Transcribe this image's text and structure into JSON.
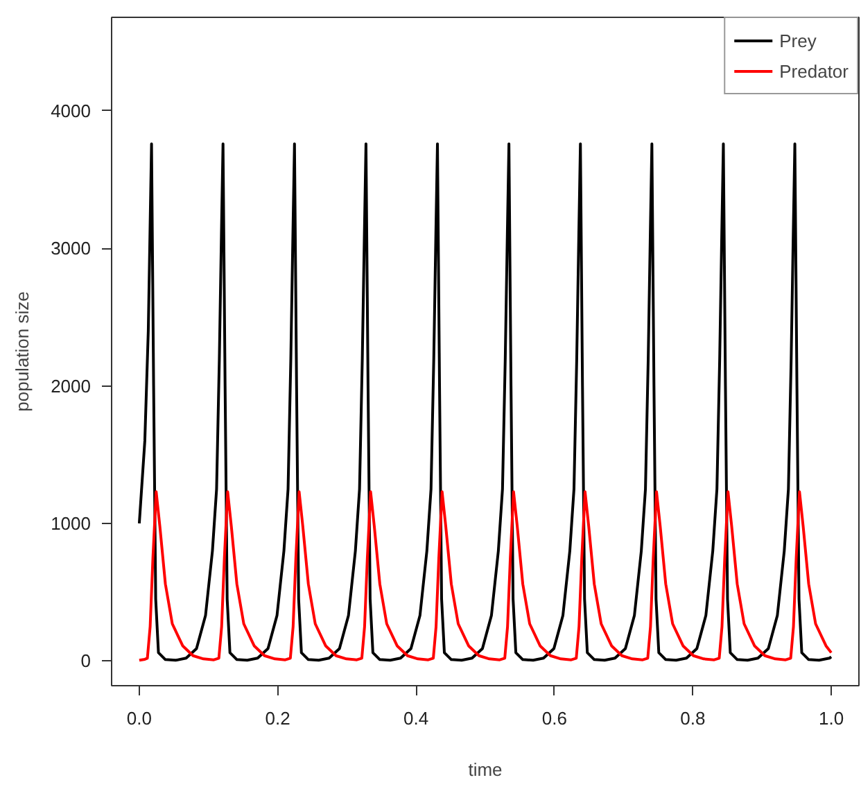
{
  "chart_data": {
    "type": "line",
    "xlabel": "time",
    "ylabel": "population size",
    "xlim": [
      -0.04,
      1.04
    ],
    "ylim": [
      -180,
      4680
    ],
    "xticks": [
      {
        "value": 0,
        "label": "0.0"
      },
      {
        "value": 0.2,
        "label": "0.2"
      },
      {
        "value": 0.4,
        "label": "0.4"
      },
      {
        "value": 0.6,
        "label": "0.6"
      },
      {
        "value": 0.8,
        "label": "0.8"
      },
      {
        "value": 1,
        "label": "1.0"
      }
    ],
    "yticks": [
      0,
      1000,
      2000,
      3000,
      4000
    ],
    "grid": false,
    "legend": "top right",
    "marker": "none",
    "line_style": "solid",
    "series": [
      {
        "name": "Prey",
        "color": "#000000",
        "x": [
          0,
          0.008,
          0.013,
          0.0177,
          0.0207,
          0.0237,
          0.0277,
          0.0377,
          0.0527,
          0.0677,
          0.0827,
          0.0957,
          0.1057,
          0.1117,
          0.1157,
          0.1187,
          0.121,
          0.124,
          0.127,
          0.131,
          0.141,
          0.156,
          0.171,
          0.186,
          0.199,
          0.209,
          0.215,
          0.219,
          0.222,
          0.2243,
          0.2273,
          0.2303,
          0.2343,
          0.2443,
          0.2593,
          0.2743,
          0.2893,
          0.3023,
          0.3123,
          0.3183,
          0.3223,
          0.3253,
          0.3276,
          0.3306,
          0.3336,
          0.3376,
          0.3476,
          0.3626,
          0.3776,
          0.3926,
          0.4056,
          0.4156,
          0.4216,
          0.4256,
          0.4286,
          0.4309,
          0.4339,
          0.4369,
          0.4409,
          0.4509,
          0.4659,
          0.4809,
          0.4959,
          0.5089,
          0.5189,
          0.5249,
          0.5289,
          0.5319,
          0.5342,
          0.5372,
          0.5402,
          0.5442,
          0.5542,
          0.5692,
          0.5842,
          0.5992,
          0.6122,
          0.6222,
          0.6282,
          0.6322,
          0.6352,
          0.6375,
          0.6405,
          0.6435,
          0.6475,
          0.6575,
          0.6725,
          0.6875,
          0.7025,
          0.7155,
          0.7255,
          0.7315,
          0.7355,
          0.7385,
          0.7408,
          0.7438,
          0.7468,
          0.7508,
          0.7608,
          0.7758,
          0.7908,
          0.8058,
          0.8188,
          0.8288,
          0.8348,
          0.8388,
          0.8418,
          0.8441,
          0.8471,
          0.8501,
          0.8541,
          0.8641,
          0.8791,
          0.8941,
          0.9091,
          0.9221,
          0.9321,
          0.9381,
          0.9421,
          0.9451,
          0.9474,
          0.9504,
          0.9534,
          0.9574,
          0.9674,
          0.9824,
          0.9974,
          1.0
        ],
        "values": [
          1000,
          1600,
          2400,
          3760,
          2000,
          450,
          60,
          10,
          5,
          20,
          90,
          330,
          800,
          1250,
          2200,
          3100,
          3760,
          2000,
          450,
          60,
          10,
          5,
          20,
          90,
          330,
          800,
          1250,
          2200,
          3100,
          3760,
          2000,
          450,
          60,
          10,
          5,
          20,
          90,
          330,
          800,
          1250,
          2200,
          3100,
          3760,
          2000,
          450,
          60,
          10,
          5,
          20,
          90,
          330,
          800,
          1250,
          2200,
          3100,
          3760,
          2000,
          450,
          60,
          10,
          5,
          20,
          90,
          330,
          800,
          1250,
          2200,
          3100,
          3760,
          2000,
          450,
          60,
          10,
          5,
          20,
          90,
          330,
          800,
          1250,
          2200,
          3100,
          3760,
          2000,
          450,
          60,
          10,
          5,
          20,
          90,
          330,
          800,
          1250,
          2200,
          3100,
          3760,
          2000,
          450,
          60,
          10,
          5,
          20,
          90,
          330,
          800,
          1250,
          2200,
          3100,
          3760,
          2000,
          450,
          60,
          10,
          5,
          20,
          90,
          330,
          800,
          1250,
          2200,
          3100,
          3760,
          2000,
          450,
          60,
          10,
          5,
          20,
          30
        ]
      },
      {
        "name": "Predator",
        "color": "#ff0000",
        "x": [
          0,
          0.008,
          0.0117,
          0.0157,
          0.0197,
          0.0244,
          0.0297,
          0.0377,
          0.0477,
          0.0627,
          0.0777,
          0.0927,
          0.1077,
          0.115,
          0.119,
          0.123,
          0.1277,
          0.133,
          0.141,
          0.151,
          0.166,
          0.181,
          0.196,
          0.211,
          0.2183,
          0.2223,
          0.2263,
          0.231,
          0.2363,
          0.2443,
          0.2543,
          0.2693,
          0.2843,
          0.2993,
          0.3143,
          0.3216,
          0.3256,
          0.3296,
          0.3343,
          0.3396,
          0.3476,
          0.3576,
          0.3726,
          0.3876,
          0.4026,
          0.4176,
          0.4249,
          0.4289,
          0.4329,
          0.4376,
          0.4429,
          0.4509,
          0.4609,
          0.4759,
          0.4909,
          0.5059,
          0.5209,
          0.5282,
          0.5322,
          0.5362,
          0.5409,
          0.5462,
          0.5542,
          0.5642,
          0.5792,
          0.5942,
          0.6092,
          0.6242,
          0.6315,
          0.6355,
          0.6395,
          0.6442,
          0.6495,
          0.6575,
          0.6675,
          0.6825,
          0.6975,
          0.7125,
          0.7275,
          0.7348,
          0.7388,
          0.7428,
          0.7475,
          0.7528,
          0.7608,
          0.7708,
          0.7858,
          0.8008,
          0.8158,
          0.8308,
          0.8381,
          0.8421,
          0.8461,
          0.8508,
          0.8561,
          0.8641,
          0.8741,
          0.8891,
          0.9041,
          0.9191,
          0.9341,
          0.9414,
          0.9454,
          0.9494,
          0.9541,
          0.9594,
          0.9674,
          0.9774,
          0.9924,
          1.0
        ],
        "values": [
          5,
          12,
          20,
          250,
          750,
          1230,
          980,
          560,
          270,
          110,
          38,
          15,
          8,
          20,
          250,
          750,
          1230,
          980,
          560,
          270,
          110,
          38,
          15,
          8,
          20,
          250,
          750,
          1230,
          980,
          560,
          270,
          110,
          38,
          15,
          8,
          20,
          250,
          750,
          1230,
          980,
          560,
          270,
          110,
          38,
          15,
          8,
          20,
          250,
          750,
          1230,
          980,
          560,
          270,
          110,
          38,
          15,
          8,
          20,
          250,
          750,
          1230,
          980,
          560,
          270,
          110,
          38,
          15,
          8,
          20,
          250,
          750,
          1230,
          980,
          560,
          270,
          110,
          38,
          15,
          8,
          20,
          250,
          750,
          1230,
          980,
          560,
          270,
          110,
          38,
          15,
          8,
          20,
          250,
          750,
          1230,
          980,
          560,
          270,
          110,
          38,
          15,
          8,
          20,
          250,
          750,
          1230,
          980,
          560,
          270,
          110,
          60
        ]
      }
    ]
  }
}
